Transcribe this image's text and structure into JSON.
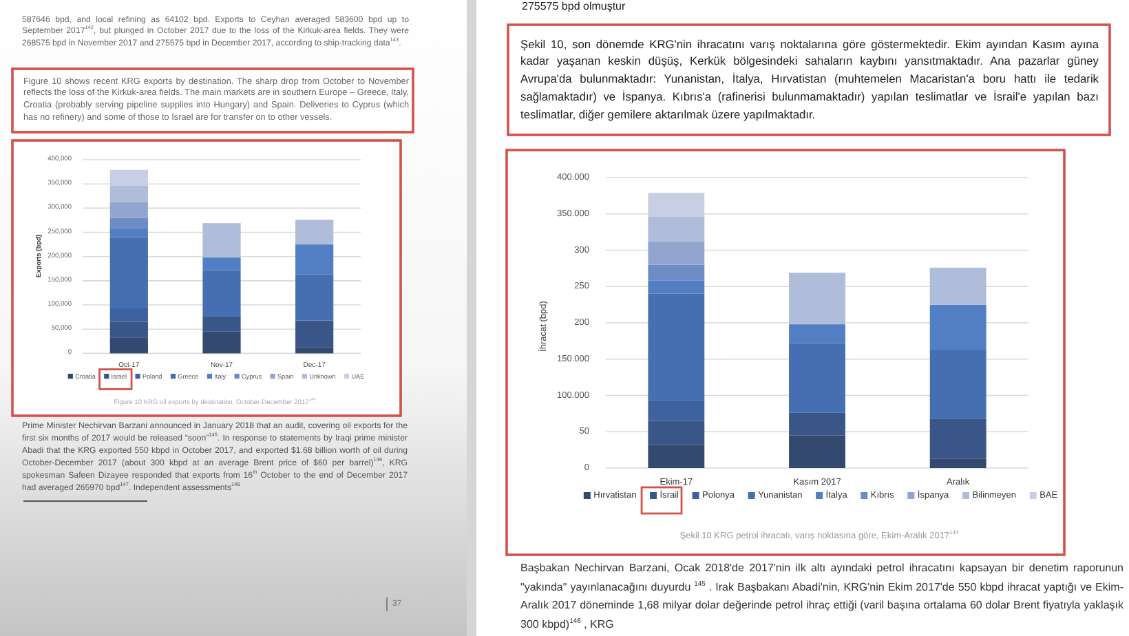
{
  "chart_data": [
    {
      "type": "bar",
      "stacked": true,
      "categories": [
        "Oct-17",
        "Nov-17",
        "Dec-17"
      ],
      "series": [
        {
          "name": "Croatia",
          "color": "#33496f",
          "values": [
            32000,
            45000,
            13000
          ]
        },
        {
          "name": "Israel",
          "color": "#3a5689",
          "values": [
            33000,
            31000,
            55000
          ]
        },
        {
          "name": "Poland",
          "color": "#3e62a0",
          "values": [
            28000,
            null,
            null
          ]
        },
        {
          "name": "Greece",
          "color": "#466fb2",
          "values": [
            147000,
            96000,
            95000
          ]
        },
        {
          "name": "Italy",
          "color": "#527fc4",
          "values": [
            18000,
            26000,
            62000
          ]
        },
        {
          "name": "Cyprus",
          "color": "#6d8bc4",
          "values": [
            22000,
            null,
            null
          ]
        },
        {
          "name": "Spain",
          "color": "#92a5cf",
          "values": [
            32000,
            null,
            null
          ]
        },
        {
          "name": "Unknown",
          "color": "#afbcda",
          "values": [
            34000,
            71000,
            51000
          ]
        },
        {
          "name": "UAE",
          "color": "#c8cfe4",
          "values": [
            33000,
            null,
            null
          ]
        }
      ],
      "ylim": [
        0,
        400000
      ],
      "yticks": [
        0,
        {
          "value": 50000,
          "label": "50,000"
        },
        {
          "value": 100000,
          "label": "100,000"
        },
        {
          "value": 150000,
          "label": "150,000"
        },
        {
          "value": 200000,
          "label": "200,000"
        },
        {
          "value": 250000,
          "label": "250,000"
        },
        {
          "value": 300000,
          "label": "300,000"
        },
        {
          "value": 350000,
          "label": "350,000"
        },
        {
          "value": 400000,
          "label": "400,000"
        }
      ],
      "ylabel": "Exports (bpd)",
      "grid": "y",
      "legend": "bottom",
      "annotations": [
        "587646 bpd, and local refining as 64102 bpd. Exports to Ceyhan averaged 583600 bpd up to September 2017$^{142}$, but plunged in October 2017 due to the loss of the Kirkuk-area fields. They were 268575 bpd in November 2017 and 275575 bpd in December 2017, according to ship-tracking data$^{143}$.",
        "Figure 10 shows recent KRG exports by destination. The sharp drop from October to November reflects the loss of the Kirkuk-area fields. The main markets are in southern Europe – Greece, Italy, Croatia (probably serving pipeline supplies into Hungary) and Spain. Deliveries to Cyprus (which has no refinery) and some of those to Israel are for transfer on to other vessels.",
        "Figure 10 KRG oil exports by destination, October-December 2017$^{144}$",
        "Prime Minister Nechirvan Barzani announced in January 2018 that an audit, covering oil exports for the first six months of 2017 would be released “soon”$^{145}$. In response to statements by Iraqi prime minister Abadi that the KRG exported 550 kbpd in October 2017, and exported $1.68 billion worth of oil during October-December 2017 (about 300 kbpd at an average Brent price of $60 per barrel)$^{146}$, KRG spokesman Safeen Dizayee responded that exports from 16$^{th}$ October to the end of December 2017 had averaged 265970 bpd$^{147}$. Independent assessments$^{148}$",
        "37"
      ]
    },
    {
      "type": "bar",
      "stacked": true,
      "categories": [
        "Ekim-17",
        "Kasım 2017",
        "Aralık"
      ],
      "series": [
        {
          "name": "Hırvatistan",
          "color": "#33496f",
          "values": [
            32,
            45,
            13
          ]
        },
        {
          "name": "İsrail",
          "color": "#3a5689",
          "values": [
            33,
            31,
            55
          ]
        },
        {
          "name": "Polonya",
          "color": "#3e62a0",
          "values": [
            28,
            null,
            null
          ]
        },
        {
          "name": "Yunanistan",
          "color": "#466fb2",
          "values": [
            147,
            96,
            95
          ]
        },
        {
          "name": "İtalya",
          "color": "#527fc4",
          "values": [
            18,
            26,
            62
          ]
        },
        {
          "name": "Kıbrıs",
          "color": "#6d8bc4",
          "values": [
            22,
            null,
            null
          ]
        },
        {
          "name": "İspanya",
          "color": "#92a5cf",
          "values": [
            32,
            null,
            null
          ]
        },
        {
          "name": "Bilinmeyen",
          "color": "#afbcda",
          "values": [
            34,
            71,
            51
          ]
        },
        {
          "name": "BAE",
          "color": "#c8cfe4",
          "values": [
            33,
            null,
            null
          ]
        }
      ],
      "ylim": [
        0,
        400
      ],
      "yticks": [
        0,
        50,
        {
          "value": 100,
          "label": "100.000"
        },
        {
          "value": 150,
          "label": "150.000"
        },
        200,
        250,
        300,
        {
          "value": 350,
          "label": "350.000"
        },
        {
          "value": 400,
          "label": "400.000"
        }
      ],
      "ylabel": "İhracat (bpd)",
      "grid": "y",
      "legend": "bottom",
      "annotations": [
        "275575 bpd olmuştur",
        "Şekil 10, son dönemde KRG'nin ihracatını varış noktalarına göre göstermektedir. Ekim ayından Kasım ayına kadar yaşanan keskin düşüş, Kerkük bölgesindeki sahaların kaybını yansıtmaktadır. Ana pazarlar güney Avrupa'da bulunmaktadır: Yunanistan, İtalya, Hırvatistan (muhtemelen Macaristan'a boru hattı ile tedarik sağlamaktadır) ve İspanya. Kıbrıs'a (rafinerisi bulunmamaktadır) yapılan teslimatlar ve İsrail'e yapılan bazı teslimatlar, diğer gemilere aktarılmak üzere yapılmaktadır.",
        "Şekil 10 KRG petrol ihracatı, varış noktasına göre, Ekim-Aralık 2017$^{144}$",
        "Başbakan Nechirvan Barzani, Ocak 2018'de 2017'nin ilk altı ayındaki petrol ihracatını kapsayan bir denetim raporunun \"yakında\" yayınlanacağını duyurdu $^{145}$ . Irak Başbakanı Abadi'nin, KRG'nin Ekim 2017'de 550 kbpd ihracat yaptığı ve Ekim-Aralık 2017 döneminde 1,68 milyar dolar değerinde petrol ihraç ettiği (varil başına ortalama 60 dolar Brent fiyatıyla yaklaşık 300 kbpd)$^{146}$ , KRG"
      ]
    }
  ]
}
